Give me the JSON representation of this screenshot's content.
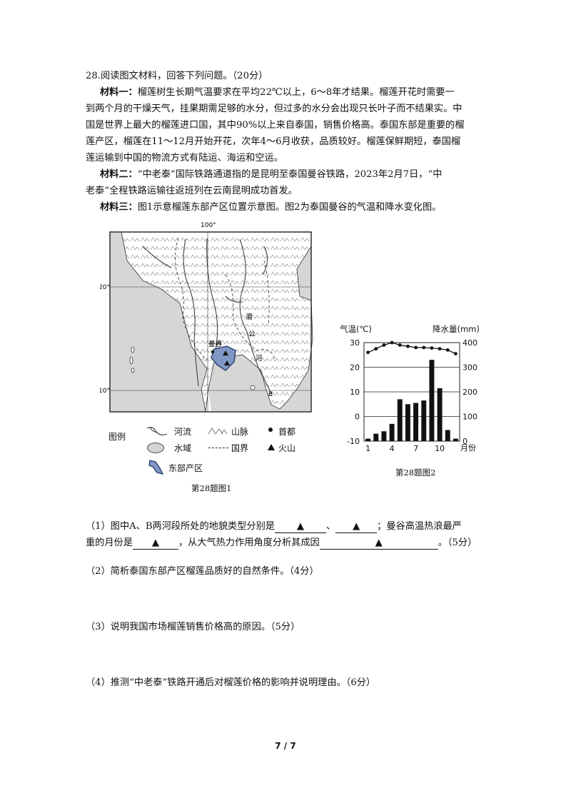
{
  "question": {
    "title": "28.阅读图文材料，回答下列问题。（20分）",
    "m1_label": "材料一：",
    "m1_line1": "榴莲树生长期气温要求在平均22℃以上，6～8年才结果。榴莲开花时需要一",
    "m1_line2": "到两个月的干燥天气，挂果期需足够的水分，但过多的水分会出现只长叶子而不结果实。中",
    "m1_line3": "国是世界上最大的榴莲进口国，其中90%以上来自泰国，销售价格高。泰国东部是重要的榴",
    "m1_line4": "莲产区，榴莲在11～12月开始开花，次年4～6月收获，品质较好。榴莲保鲜期短，泰国榴",
    "m1_line5": "莲运输到中国的物流方式有陆运、海运和空运。",
    "m2_label": "材料二：",
    "m2_line1": "“中老泰”国际铁路通道指的是昆明至泰国曼谷铁路，2023年2月7日，“中",
    "m2_line2": "老泰”全程铁路运输往返班列在云南昆明成功首发。",
    "m3_label": "材料三：",
    "m3_line1": "图1示意榴莲东部产区位置示意图。图2为泰国曼谷的气温和降水变化图。"
  },
  "map": {
    "lon_label": "100°",
    "lat20": "20°",
    "lat10": "10°",
    "place_bangkok": "曼谷",
    "label_a": "A",
    "label_b": "B",
    "country_chars": [
      "湄",
      "公",
      "河"
    ],
    "legend_title": "图例",
    "legend_river": "河流",
    "legend_mountain": "山脉",
    "legend_capital": "首都",
    "legend_water": "水域",
    "legend_border": "国界",
    "legend_volcano": "火山",
    "legend_region": "东部产区",
    "caption": "第28题图1",
    "colors": {
      "region": "#7f97c4",
      "water": "#d3d3d3",
      "frame": "#222222"
    }
  },
  "climate_caption": "第28题图2",
  "chart_data": {
    "type": "bar",
    "title": "",
    "ylabel_left": "气温(℃)",
    "ylabel_right": "降水量(mm)",
    "xlabel": "月份",
    "categories": [
      "1",
      "2",
      "3",
      "4",
      "5",
      "6",
      "7",
      "8",
      "9",
      "10",
      "11",
      "12"
    ],
    "x_ticks": [
      "1",
      "4",
      "7",
      "10"
    ],
    "temp_ticks": [
      "30",
      "20",
      "10",
      "0",
      "-10"
    ],
    "precip_ticks": [
      "400",
      "300",
      "200",
      "100",
      "0"
    ],
    "temp_range": [
      -10,
      30
    ],
    "precip_range": [
      0,
      400
    ],
    "series": [
      {
        "type": "bar",
        "axis": "right",
        "values": [
          10,
          30,
          40,
          70,
          170,
          150,
          155,
          165,
          330,
          215,
          45,
          10
        ]
      },
      {
        "type": "line",
        "axis": "left",
        "values": [
          26,
          27.5,
          29,
          30,
          29,
          28.5,
          28,
          28,
          27.8,
          27.5,
          27,
          25.5
        ]
      }
    ],
    "grid": true
  },
  "questions": {
    "q1_a": "（1）图中A、B两河段所处的地貌类型分别是",
    "q1_b": "、",
    "q1_c": "；曼谷高温热浪最严",
    "q1_d": "重的月份是",
    "q1_e": "，从大气热力作用角度分析其成因",
    "q1_f": "。（5分）",
    "triangle": "▲",
    "q2": "（2）简析泰国东部产区榴莲品质好的自然条件。（4分）",
    "q3": "（3）说明我国市场榴莲销售价格高的原因。（5分）",
    "q4": "（4）推测“中老泰”铁路开通后对榴莲价格的影响并说明理由。（6分）"
  },
  "page_number": "7 / 7"
}
